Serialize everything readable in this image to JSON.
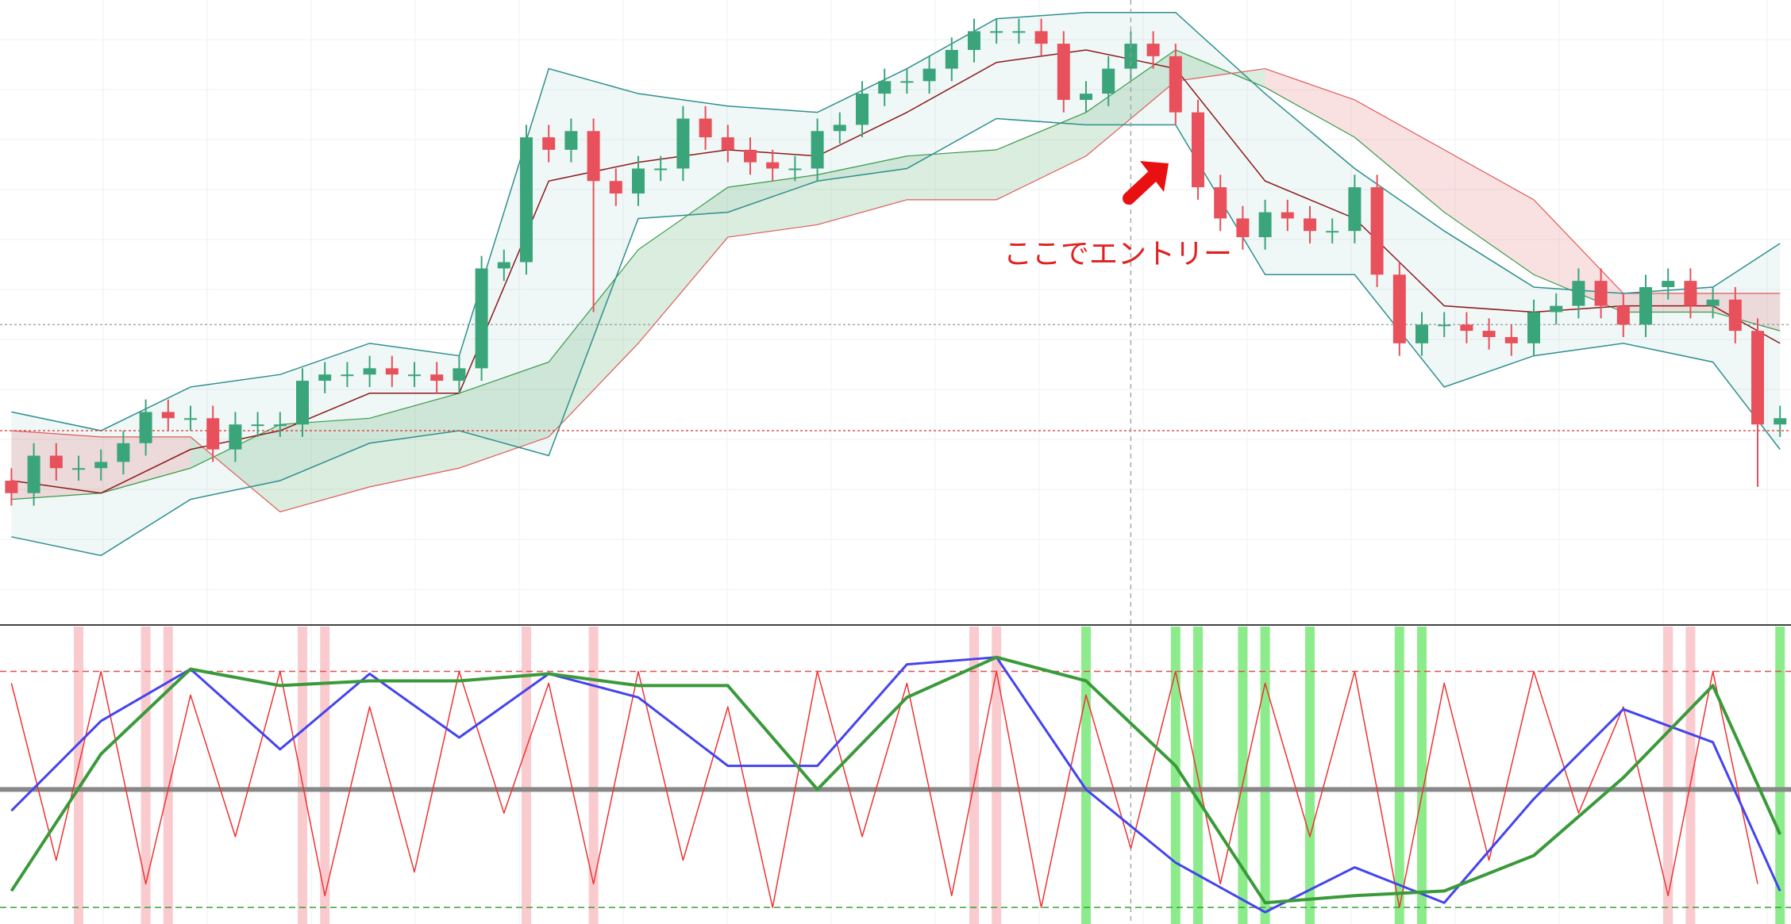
{
  "chart_data": [
    {
      "type": "candlestick",
      "ylim": [
        0,
        100
      ],
      "up_color": "#3aa57a",
      "down_color": "#e8505b",
      "open": [
        23,
        21,
        27,
        25,
        25,
        26,
        29,
        34,
        33,
        33,
        28,
        32,
        32,
        32,
        39,
        40,
        40,
        41,
        40,
        40,
        39,
        41,
        57,
        58,
        78,
        76,
        79,
        71,
        69,
        73,
        73,
        81,
        78,
        76,
        74,
        73,
        73,
        79,
        80,
        85,
        87,
        87,
        89,
        92,
        95,
        95,
        95,
        93,
        84,
        85,
        89,
        93,
        91,
        82,
        70,
        65,
        62,
        66,
        65,
        63,
        63,
        70,
        56,
        45,
        48,
        48,
        47,
        46,
        45,
        50,
        51,
        55,
        51,
        48,
        54,
        55,
        51,
        52,
        47,
        32
      ],
      "high": [
        25,
        29,
        29,
        27,
        28,
        31,
        36,
        36,
        35,
        35,
        34,
        34,
        34,
        41,
        42,
        42,
        43,
        43,
        42,
        42,
        43,
        59,
        60,
        80,
        80,
        81,
        81,
        73,
        75,
        75,
        83,
        83,
        80,
        78,
        76,
        75,
        81,
        82,
        87,
        89,
        89,
        91,
        94,
        97,
        97,
        97,
        97,
        95,
        87,
        91,
        95,
        95,
        93,
        84,
        72,
        67,
        68,
        68,
        67,
        65,
        72,
        72,
        58,
        50,
        50,
        50,
        49,
        48,
        52,
        53,
        57,
        57,
        53,
        56,
        57,
        57,
        54,
        54,
        49,
        35
      ],
      "low": [
        19,
        19,
        23,
        23,
        23,
        24,
        27,
        31,
        31,
        26,
        26,
        30,
        30,
        30,
        37,
        38,
        38,
        38,
        38,
        37,
        37,
        39,
        55,
        56,
        74,
        74,
        50,
        67,
        67,
        71,
        71,
        76,
        74,
        72,
        71,
        71,
        71,
        77,
        78,
        83,
        85,
        85,
        87,
        90,
        93,
        93,
        91,
        82,
        82,
        83,
        87,
        89,
        80,
        68,
        63,
        60,
        60,
        63,
        61,
        61,
        61,
        54,
        43,
        43,
        46,
        45,
        44,
        43,
        43,
        48,
        49,
        49,
        46,
        46,
        52,
        49,
        49,
        45,
        22,
        30
      ],
      "close": [
        21,
        27,
        25,
        25,
        26,
        29,
        34,
        33,
        33,
        28,
        32,
        32,
        32,
        39,
        40,
        40,
        41,
        40,
        40,
        39,
        41,
        57,
        58,
        78,
        76,
        79,
        71,
        69,
        73,
        73,
        81,
        78,
        76,
        74,
        73,
        73,
        79,
        80,
        85,
        87,
        87,
        89,
        92,
        95,
        95,
        95,
        93,
        84,
        85,
        89,
        93,
        91,
        82,
        70,
        65,
        62,
        66,
        65,
        63,
        63,
        70,
        56,
        45,
        48,
        48,
        47,
        46,
        45,
        50,
        51,
        55,
        51,
        48,
        54,
        55,
        51,
        52,
        47,
        32,
        33
      ],
      "overlays": {
        "x": [
          0,
          4,
          8,
          12,
          16,
          20,
          24,
          28,
          32,
          36,
          40,
          44,
          48,
          52,
          56,
          60,
          64,
          68,
          72,
          76,
          79
        ],
        "bb_upper": [
          34,
          31,
          38,
          40,
          45,
          43,
          89,
          85,
          83,
          82,
          89,
          97,
          98,
          98,
          85,
          73,
          63,
          54,
          53,
          54,
          61
        ],
        "bb_middle": [
          23,
          21,
          28,
          31,
          37,
          37,
          71,
          74,
          76,
          75,
          82,
          90,
          92,
          89,
          71,
          65,
          51,
          50,
          51,
          51,
          45
        ],
        "bb_lower": [
          14,
          11,
          20,
          23,
          29,
          31,
          27,
          65,
          66,
          71,
          73,
          81,
          80,
          80,
          56,
          56,
          38,
          43,
          45,
          42,
          28
        ],
        "span_a": [
          20,
          21,
          25,
          32,
          33,
          37,
          42,
          60,
          70,
          72,
          75,
          76,
          82,
          92,
          86,
          78,
          66,
          56,
          50,
          50,
          47
        ],
        "span_b": [
          31,
          30,
          30,
          18,
          22,
          25,
          30,
          45,
          62,
          64,
          68,
          68,
          75,
          87,
          89,
          84,
          76,
          68,
          53,
          53,
          53
        ],
        "band_color": "#2f8f8f",
        "middle_color": "#8b1a1a",
        "bull_cloud": "#3a9a4a",
        "bear_cloud": "#e05a5a"
      },
      "h_lines": [
        {
          "value": 31,
          "color": "#e03030"
        },
        {
          "value": 48,
          "color": "#999999"
        }
      ],
      "crosshair": 50,
      "annotation": "ここでエントリー"
    },
    {
      "type": "line",
      "ylim": [
        -7,
        119
      ],
      "levels": [
        {
          "value": 100,
          "color": "#e05050"
        },
        {
          "value": 50,
          "color": "#888888"
        },
        {
          "value": 0,
          "color": "#3aa03a"
        }
      ],
      "series": [
        {
          "color": "#ee3333",
          "width": 1.5,
          "x": [
            0,
            2,
            4,
            6,
            8,
            10,
            12,
            14,
            16,
            18,
            20,
            22,
            24,
            26,
            28,
            30,
            32,
            34,
            36,
            38,
            40,
            42,
            44,
            46,
            48,
            50,
            52,
            54,
            56,
            58,
            60,
            62,
            64,
            66,
            68,
            70,
            72,
            74,
            76,
            78
          ],
          "values": [
            95,
            20,
            100,
            10,
            90,
            30,
            100,
            5,
            85,
            15,
            100,
            40,
            95,
            10,
            100,
            20,
            85,
            0,
            100,
            30,
            95,
            5,
            100,
            0,
            90,
            25,
            100,
            10,
            95,
            30,
            100,
            0,
            95,
            20,
            100,
            40,
            85,
            5,
            100,
            10
          ]
        },
        {
          "color": "#4444ee",
          "width": 3,
          "x": [
            0,
            4,
            8,
            12,
            16,
            20,
            24,
            28,
            32,
            36,
            40,
            44,
            48,
            52,
            56,
            60,
            64,
            68,
            72,
            76,
            79
          ],
          "values": [
            41,
            79,
            101,
            67,
            99,
            72,
            99,
            89,
            60,
            60,
            103,
            106,
            50,
            19,
            -2,
            17,
            2,
            46,
            84,
            70,
            7
          ]
        },
        {
          "color": "#3a9a3a",
          "width": 4,
          "x": [
            0,
            4,
            8,
            12,
            16,
            20,
            24,
            28,
            32,
            36,
            40,
            44,
            48,
            52,
            56,
            60,
            64,
            68,
            72,
            76,
            79
          ],
          "values": [
            7,
            65,
            101,
            94,
            96,
            96,
            99,
            94,
            94,
            50,
            89,
            106,
            96,
            60,
            2,
            5,
            7,
            22,
            55,
            94,
            31
          ]
        }
      ],
      "buy_signals": [
        48,
        52,
        53,
        55,
        56,
        58,
        62,
        63,
        79
      ],
      "sell_signals": [
        3,
        6,
        7,
        13,
        14,
        23,
        26,
        43,
        44,
        74,
        75
      ],
      "buy_color": "#40e040",
      "sell_color": "#f4a0a8"
    }
  ]
}
